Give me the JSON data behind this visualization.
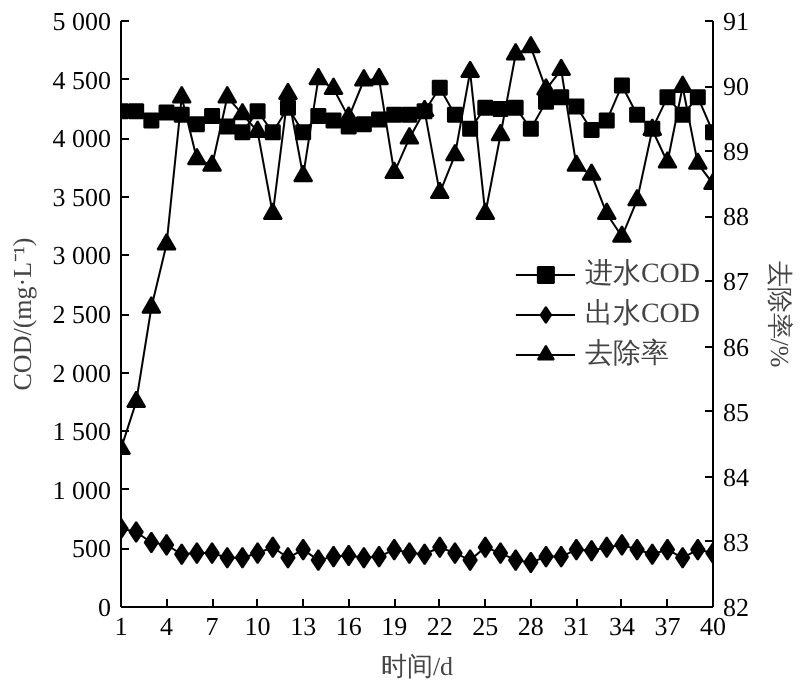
{
  "chart_data": {
    "type": "line",
    "xlabel": "时间/d",
    "ylabel": "COD/(mg·L⁻¹)",
    "y2label": "去除率/%",
    "x": [
      1,
      2,
      3,
      4,
      5,
      6,
      7,
      8,
      9,
      10,
      11,
      12,
      13,
      14,
      15,
      16,
      17,
      18,
      19,
      20,
      21,
      22,
      23,
      24,
      25,
      26,
      27,
      28,
      29,
      30,
      31,
      32,
      33,
      34,
      35,
      36,
      37,
      38,
      39,
      40
    ],
    "xlim": [
      1,
      40
    ],
    "xticks": [
      1,
      4,
      7,
      10,
      13,
      16,
      19,
      22,
      25,
      28,
      31,
      34,
      37,
      40
    ],
    "ylim": [
      0,
      5000
    ],
    "yticks": [
      0,
      {
        "value": 500,
        "label": "500"
      },
      {
        "value": 1000,
        "label": "1 000"
      },
      {
        "value": 1500,
        "label": "1 500"
      },
      {
        "value": 2000,
        "label": "2 000"
      },
      {
        "value": 2500,
        "label": "2 500"
      },
      {
        "value": 3000,
        "label": "3 000"
      },
      {
        "value": 3500,
        "label": "3 500"
      },
      {
        "value": 4000,
        "label": "4 000"
      },
      {
        "value": 4500,
        "label": "4 500"
      },
      {
        "value": 5000,
        "label": "5 000"
      }
    ],
    "y2lim": [
      82,
      91
    ],
    "y2ticks": [
      82,
      83,
      84,
      85,
      86,
      87,
      88,
      89,
      90,
      91
    ],
    "legend": "right",
    "grid": false,
    "series": [
      {
        "name": "进水COD",
        "color": "#000000",
        "marker": "square",
        "values": [
          4230,
          4230,
          4150,
          4220,
          4200,
          4120,
          4190,
          4100,
          4050,
          4230,
          4050,
          4260,
          4050,
          4190,
          4150,
          4100,
          4120,
          4160,
          4200,
          4200,
          4230,
          4430,
          4200,
          4080,
          4260,
          4250,
          4260,
          4080,
          4310,
          4350,
          4270,
          4070,
          4150,
          4450,
          4200,
          4080,
          4350,
          4200,
          4350,
          4050
        ]
      },
      {
        "name": "出水COD",
        "color": "#000000",
        "marker": "diamond",
        "values": [
          670,
          640,
          550,
          530,
          450,
          460,
          460,
          420,
          420,
          460,
          510,
          420,
          490,
          400,
          430,
          440,
          420,
          430,
          490,
          460,
          450,
          510,
          460,
          400,
          510,
          460,
          400,
          380,
          430,
          430,
          490,
          480,
          510,
          530,
          490,
          450,
          490,
          420,
          490,
          460
        ]
      },
      {
        "name": "去除率",
        "color": "#000000",
        "marker": "triangle",
        "axis": "y2",
        "values": [
          84.43,
          85.15,
          86.6,
          87.57,
          89.83,
          88.88,
          88.78,
          89.83,
          89.57,
          89.3,
          88.04,
          89.88,
          88.62,
          90.11,
          89.96,
          89.52,
          90.09,
          90.11,
          88.67,
          89.2,
          89.62,
          88.36,
          88.94,
          90.22,
          88.04,
          89.25,
          90.49,
          90.6,
          89.95,
          90.25,
          88.78,
          88.64,
          88.04,
          87.69,
          88.25,
          89.33,
          88.83,
          89.99,
          88.81,
          88.5
        ]
      }
    ]
  }
}
